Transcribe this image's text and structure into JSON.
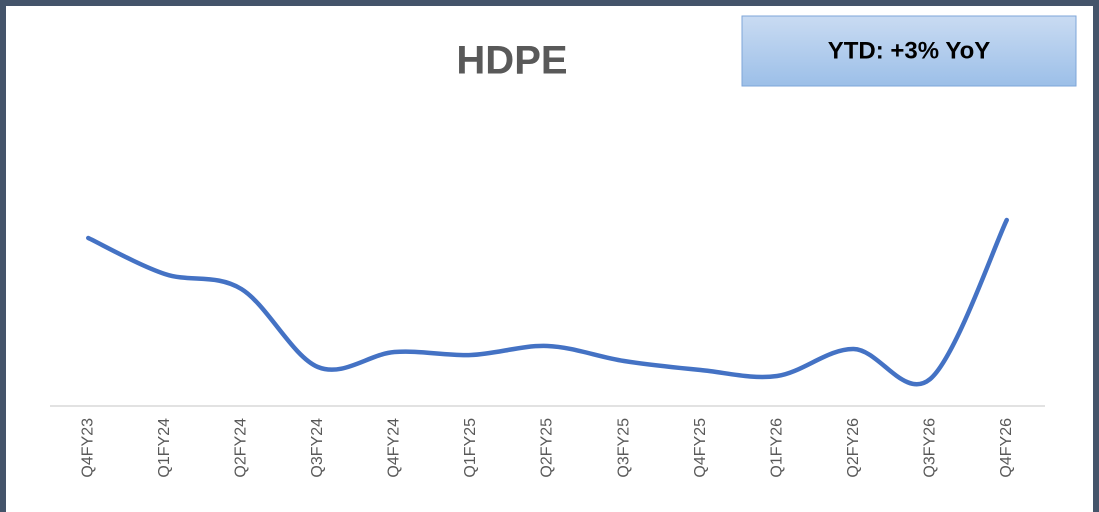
{
  "chart_data": {
    "type": "line",
    "title": "HDPE",
    "annotation": "YTD: +3% YoY",
    "categories": [
      "Q4FY23",
      "Q1FY24",
      "Q2FY24",
      "Q3FY24",
      "Q4FY24",
      "Q1FY25",
      "Q2FY25",
      "Q3FY25",
      "Q4FY25",
      "Q1FY26",
      "Q2FY26",
      "Q3FY26",
      "Q4FY26"
    ],
    "values": [
      56,
      44,
      39,
      13,
      18,
      17,
      20,
      15,
      12,
      10,
      19,
      9,
      62
    ],
    "color": "#4472c4",
    "ylim": [
      0,
      102
    ]
  }
}
